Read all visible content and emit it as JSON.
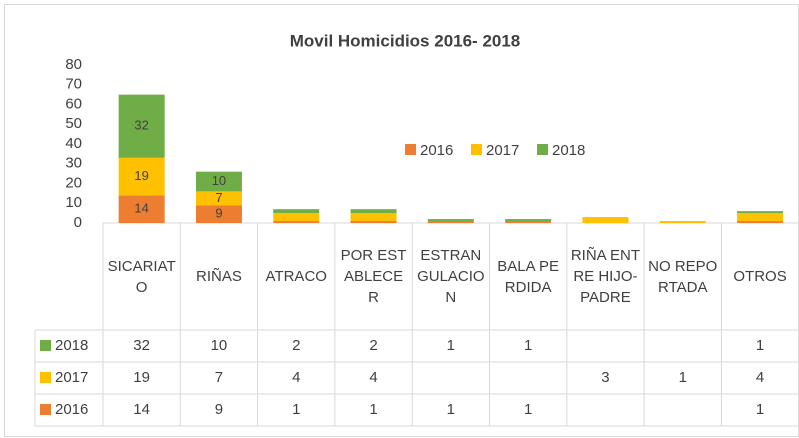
{
  "chart_data": {
    "type": "stacked_bar",
    "title": "Movil Homicidios 2016- 2018",
    "categories": [
      "SICARIATO",
      "RIÑAS",
      "ATRACO",
      "POR ESTABLECER",
      "ESTRANGULACION",
      "BALA PERDIDA",
      "RIÑA ENTRE HIJO-PADRE",
      "NO REPORTADA",
      "OTROS"
    ],
    "series": [
      {
        "name": "2016",
        "color": "#ed7d31",
        "values": [
          14,
          9,
          1,
          1,
          1,
          1,
          null,
          null,
          1
        ]
      },
      {
        "name": "2017",
        "color": "#ffc000",
        "values": [
          19,
          7,
          4,
          4,
          null,
          null,
          3,
          1,
          4
        ]
      },
      {
        "name": "2018",
        "color": "#70ad47",
        "values": [
          32,
          10,
          2,
          2,
          1,
          1,
          null,
          null,
          1
        ]
      }
    ],
    "ylim": [
      0,
      80
    ],
    "yticks": [
      0,
      10,
      20,
      30,
      40,
      50,
      60,
      70,
      80
    ],
    "grid": false
  }
}
